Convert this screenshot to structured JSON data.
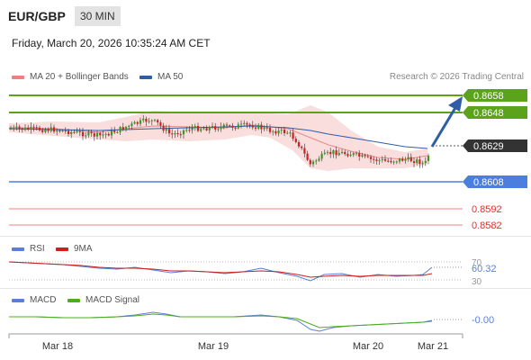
{
  "header": {
    "symbol": "EUR/GBP",
    "interval": "30 MIN",
    "datetime": "Friday, March 20, 2026 10:35:24 AM CET"
  },
  "legend": {
    "ma20_label": "MA 20 + Bollinger Bands",
    "ma50_label": "MA 50",
    "copyright": "Research © 2026 Trading Central"
  },
  "colors": {
    "green": "#5aa31b",
    "blue": "#4a7fe0",
    "red": "#f08080",
    "dark": "#333333",
    "navy": "#2f5ea8",
    "rsi": "#5b7fd6",
    "rsi_ma": "#cc1f1f",
    "macd_signal": "#4caf1a"
  },
  "price_levels": [
    {
      "value": "0.8658",
      "type": "resistance",
      "color": "green"
    },
    {
      "value": "0.8648",
      "type": "resistance",
      "color": "green"
    },
    {
      "value": "0.8629",
      "type": "current",
      "color": "dark"
    },
    {
      "value": "0.8608",
      "type": "pivot",
      "color": "blue"
    },
    {
      "value": "0.8592",
      "type": "support",
      "color": "red"
    },
    {
      "value": "0.8582",
      "type": "support",
      "color": "red"
    }
  ],
  "rsi": {
    "label": "RSI",
    "ma_label": "9MA",
    "value": "60.32",
    "upper_level": "70",
    "lower_level": "30"
  },
  "macd": {
    "label": "MACD",
    "signal_label": "MACD Signal",
    "value": "-0.00"
  },
  "x_axis": {
    "labels": [
      "Mar 18",
      "Mar 19",
      "Mar 20",
      "Mar 21"
    ]
  }
}
